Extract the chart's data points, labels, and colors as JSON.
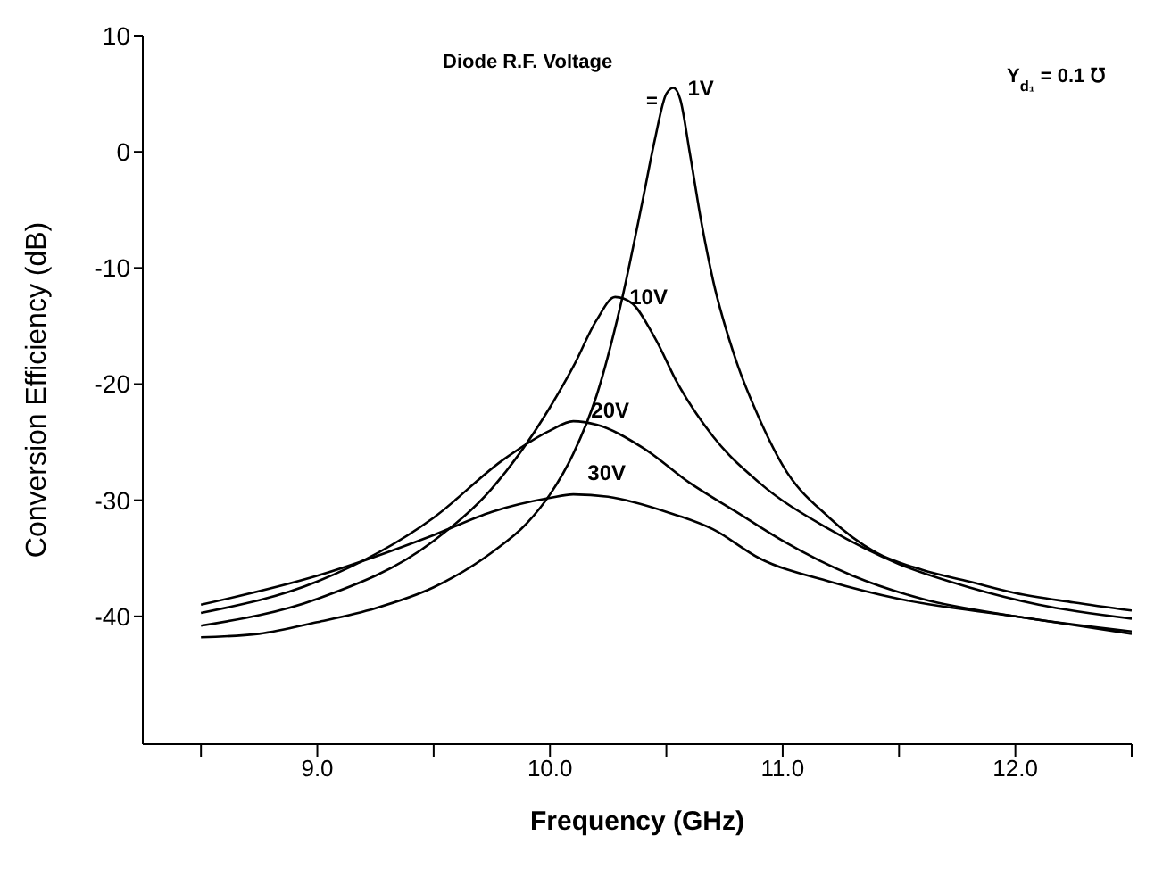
{
  "chart_data": {
    "type": "line",
    "xlabel": "Frequency (GHz)",
    "ylabel": "Conversion Efficiency (dB)",
    "annotations": [
      "Diode R.F. Voltage",
      "=",
      "Y$_{d₁}$ = 0.1 ℧"
    ],
    "xlim": [
      8.25,
      12.5
    ],
    "xticks": [
      {
        "value": 8.5,
        "label": null
      },
      {
        "value": 9,
        "label": "9.0"
      },
      {
        "value": 9.5,
        "label": null
      },
      {
        "value": 10,
        "label": "10.0"
      },
      {
        "value": 10.5,
        "label": null
      },
      {
        "value": 11,
        "label": "11.0"
      },
      {
        "value": 11.5,
        "label": null
      },
      {
        "value": 12,
        "label": "12.0"
      },
      {
        "value": 12.5,
        "label": null
      }
    ],
    "ylim": [
      -51,
      10
    ],
    "yticks": [
      10,
      0,
      -10,
      -20,
      -30,
      -40
    ],
    "marker": "none",
    "line_style": "solid",
    "series": [
      {
        "name": "1V",
        "color": "#000000",
        "x": [
          8.5,
          8.75,
          9,
          9.25,
          9.5,
          9.75,
          9.9,
          10,
          10.1,
          10.2,
          10.3,
          10.4,
          10.45,
          10.5,
          10.53,
          10.56,
          10.6,
          10.65,
          10.7,
          10.8,
          10.9,
          11,
          11.2,
          11.4,
          11.6,
          11.8,
          12,
          12.25,
          12.5
        ],
        "values": [
          -41.8,
          -41.5,
          -40.5,
          -39.3,
          -37.5,
          -34.5,
          -32,
          -29.5,
          -26,
          -21,
          -13.5,
          -4,
          1,
          5,
          5.5,
          4.5,
          0,
          -6,
          -11,
          -18,
          -23,
          -27,
          -31.5,
          -34.5,
          -36,
          -37,
          -38,
          -38.8,
          -39.5
        ]
      },
      {
        "name": "10V",
        "color": "#000000",
        "x": [
          8.5,
          9,
          9.5,
          9.75,
          10,
          10.1,
          10.2,
          10.28,
          10.35,
          10.45,
          10.55,
          10.7,
          10.9,
          11.2,
          11.5,
          11.8,
          12.1,
          12.5
        ],
        "values": [
          -40.8,
          -38.5,
          -33.5,
          -29,
          -22,
          -18.5,
          -14.5,
          -12.5,
          -13,
          -16,
          -20,
          -24.5,
          -28.5,
          -32.5,
          -35.5,
          -37.5,
          -39,
          -40.2
        ]
      },
      {
        "name": "20V",
        "color": "#000000",
        "x": [
          8.5,
          9,
          9.5,
          9.8,
          10,
          10.1,
          10.2,
          10.4,
          10.6,
          10.8,
          11,
          11.3,
          11.6,
          12,
          12.5
        ],
        "values": [
          -39.7,
          -37,
          -31.5,
          -26.5,
          -24,
          -23.2,
          -23.5,
          -25.5,
          -28.5,
          -31,
          -33.5,
          -36.5,
          -38.5,
          -40,
          -41.3
        ]
      },
      {
        "name": "30V",
        "color": "#000000",
        "x": [
          8.5,
          9,
          9.5,
          9.75,
          10,
          10.1,
          10.25,
          10.5,
          10.7,
          10.9,
          11.2,
          11.5,
          12,
          12.5
        ],
        "values": [
          -39,
          -36.5,
          -33,
          -31,
          -29.8,
          -29.5,
          -29.7,
          -31,
          -32.5,
          -35,
          -37,
          -38.5,
          -40,
          -41.5
        ]
      }
    ]
  }
}
